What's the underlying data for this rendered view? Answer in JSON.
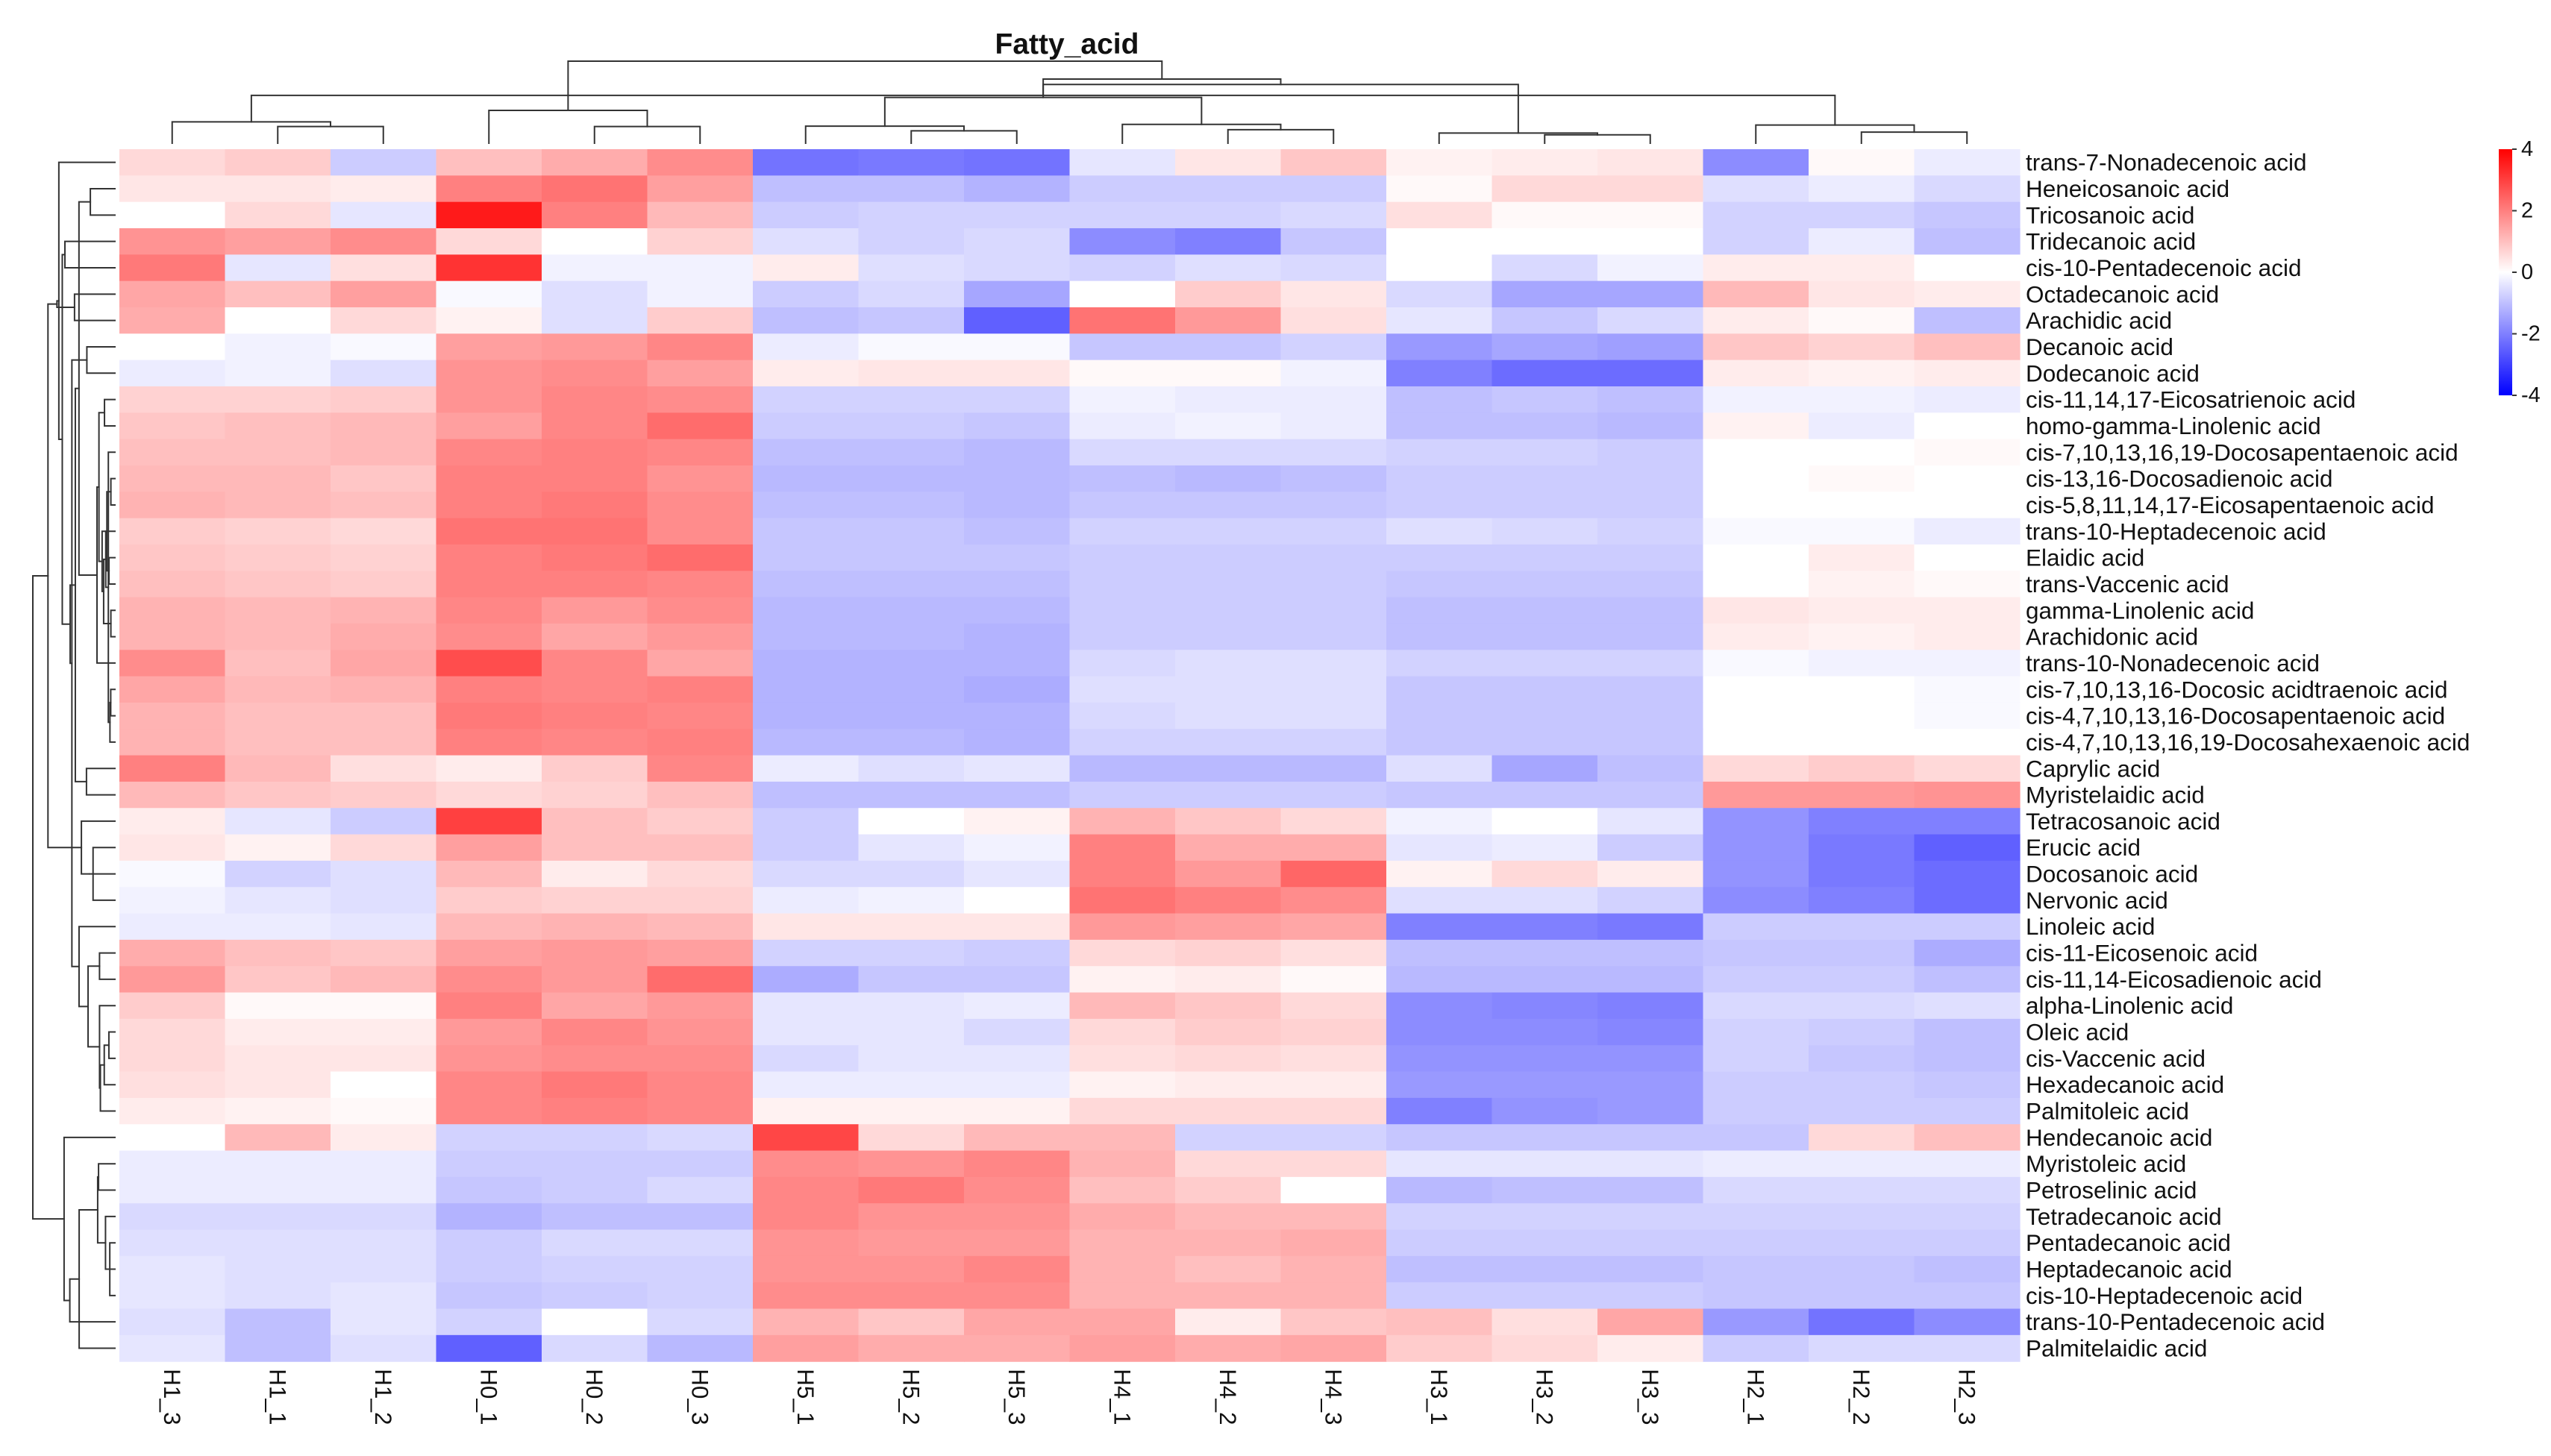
{
  "chart_data": {
    "type": "heatmap",
    "title": "Fatty_acid",
    "columns": [
      "H1_3",
      "H1_1",
      "H1_2",
      "H0_1",
      "H0_2",
      "H0_3",
      "H5_1",
      "H5_2",
      "H5_3",
      "H4_1",
      "H4_2",
      "H4_3",
      "H3_1",
      "H3_2",
      "H3_3",
      "H2_1",
      "H2_2",
      "H2_3"
    ],
    "rows": [
      "trans-7-Nonadecenoic acid",
      "Heneicosanoic acid",
      "Tricosanoic acid",
      "Tridecanoic acid",
      "cis-10-Pentadecenoic acid",
      "Octadecanoic acid",
      "Arachidic acid",
      "Decanoic acid",
      "Dodecanoic acid",
      "cis-11,14,17-Eicosatrienoic acid",
      "homo-gamma-Linolenic acid",
      "cis-7,10,13,16,19-Docosapentaenoic acid",
      "cis-13,16-Docosadienoic acid",
      "cis-5,8,11,14,17-Eicosapentaenoic acid",
      "trans-10-Heptadecenoic acid",
      "Elaidic acid",
      "trans-Vaccenic acid",
      "gamma-Linolenic acid",
      "Arachidonic acid",
      "trans-10-Nonadecenoic acid",
      "cis-7,10,13,16-Docosic acidtraenoic acid",
      "cis-4,7,10,13,16-Docosapentaenoic acid",
      "cis-4,7,10,13,16,19-Docosahexaenoic acid",
      "Caprylic acid",
      "Myristelaidic acid",
      "Tetracosanoic acid",
      "Erucic acid",
      "Docosanoic acid",
      "Nervonic acid",
      "Linoleic acid",
      "cis-11-Eicosenoic acid",
      "cis-11,14-Eicosadienoic acid",
      "alpha-Linolenic acid",
      "Oleic acid",
      "cis-Vaccenic acid",
      "Hexadecanoic acid",
      "Palmitoleic acid",
      "Hendecanoic acid",
      "Myristoleic acid",
      "Petroselinic acid",
      "Tetradecanoic acid",
      "Pentadecanoic acid",
      "Heptadecanoic acid",
      "cis-10-Heptadecenoic acid",
      "trans-10-Pentadecenoic acid",
      "Palmitelaidic acid"
    ],
    "values": [
      [
        0.6,
        0.8,
        -0.8,
        1.0,
        1.3,
        1.8,
        -2.2,
        -2.1,
        -2.2,
        -0.4,
        0.4,
        0.9,
        0.2,
        0.3,
        0.4,
        -1.8,
        0.1,
        -0.3
      ],
      [
        0.4,
        0.4,
        0.3,
        2.0,
        2.2,
        1.5,
        -1.0,
        -1.0,
        -1.2,
        -0.8,
        -0.8,
        -0.8,
        0.1,
        0.6,
        0.6,
        -0.5,
        -0.3,
        -0.6
      ],
      [
        0.0,
        0.6,
        -0.4,
        3.6,
        2.0,
        1.1,
        -0.8,
        -0.7,
        -0.7,
        -0.7,
        -0.7,
        -0.6,
        0.5,
        0.1,
        0.1,
        -0.7,
        -0.7,
        -0.9
      ],
      [
        1.7,
        1.5,
        1.8,
        0.6,
        0.0,
        0.7,
        -0.5,
        -0.7,
        -0.6,
        -1.8,
        -2.0,
        -0.9,
        0.0,
        0.0,
        0.0,
        -0.7,
        -0.3,
        -1.0
      ],
      [
        2.1,
        -0.4,
        0.5,
        3.2,
        -0.2,
        -0.2,
        0.3,
        -0.5,
        -0.6,
        -0.7,
        -0.5,
        -0.6,
        0.0,
        -0.6,
        -0.2,
        0.3,
        0.3,
        0.0
      ],
      [
        1.4,
        1.0,
        1.5,
        -0.1,
        -0.5,
        -0.2,
        -0.8,
        -0.6,
        -1.4,
        0.0,
        0.8,
        0.4,
        -0.6,
        -1.4,
        -1.4,
        1.1,
        0.4,
        0.3
      ],
      [
        1.3,
        0.0,
        0.6,
        0.2,
        -0.5,
        0.8,
        -1.0,
        -0.9,
        -2.5,
        2.2,
        1.6,
        0.5,
        -0.4,
        -0.9,
        -0.6,
        0.3,
        0.1,
        -1.0
      ],
      [
        0.0,
        -0.2,
        -0.1,
        1.5,
        1.6,
        1.9,
        -0.3,
        -0.1,
        -0.1,
        -0.9,
        -0.9,
        -0.7,
        -1.6,
        -1.4,
        -1.5,
        0.9,
        0.7,
        1.0
      ],
      [
        -0.3,
        -0.2,
        -0.5,
        1.7,
        1.8,
        1.5,
        0.3,
        0.4,
        0.4,
        0.1,
        0.1,
        -0.2,
        -2.0,
        -2.3,
        -2.3,
        0.3,
        0.2,
        0.3
      ],
      [
        0.7,
        0.7,
        0.8,
        1.7,
        1.9,
        1.8,
        -0.7,
        -0.7,
        -0.7,
        -0.2,
        -0.3,
        -0.3,
        -1.0,
        -0.9,
        -1.0,
        -0.2,
        -0.2,
        -0.3
      ],
      [
        0.9,
        1.0,
        1.1,
        1.5,
        1.9,
        2.3,
        -0.8,
        -0.8,
        -0.9,
        -0.3,
        -0.2,
        -0.3,
        -1.0,
        -1.0,
        -1.1,
        0.2,
        -0.3,
        0.0
      ],
      [
        1.0,
        1.0,
        1.1,
        1.9,
        2.0,
        1.9,
        -1.0,
        -1.0,
        -1.1,
        -0.6,
        -0.6,
        -0.6,
        -0.7,
        -0.7,
        -0.8,
        0.0,
        0.0,
        0.1
      ],
      [
        1.1,
        1.1,
        0.9,
        2.0,
        2.0,
        1.7,
        -1.1,
        -1.1,
        -1.1,
        -1.0,
        -1.1,
        -1.0,
        -0.8,
        -0.8,
        -0.8,
        0.0,
        0.1,
        0.0
      ],
      [
        1.2,
        1.1,
        1.0,
        2.0,
        2.1,
        1.8,
        -1.0,
        -1.0,
        -1.1,
        -0.9,
        -0.9,
        -0.9,
        -0.8,
        -0.8,
        -0.8,
        0.0,
        0.0,
        0.0
      ],
      [
        0.8,
        0.7,
        0.6,
        2.2,
        2.2,
        1.8,
        -0.9,
        -0.9,
        -1.0,
        -0.7,
        -0.7,
        -0.7,
        -0.5,
        -0.6,
        -0.7,
        -0.1,
        -0.1,
        -0.3
      ],
      [
        0.9,
        0.8,
        0.7,
        2.0,
        2.1,
        2.3,
        -0.9,
        -0.9,
        -0.9,
        -0.8,
        -0.8,
        -0.8,
        -0.8,
        -0.8,
        -0.8,
        0.0,
        0.3,
        0.0
      ],
      [
        1.0,
        0.9,
        0.8,
        2.0,
        2.0,
        1.9,
        -1.0,
        -1.0,
        -1.0,
        -0.8,
        -0.8,
        -0.8,
        -0.9,
        -0.9,
        -0.9,
        0.0,
        0.2,
        0.1
      ],
      [
        1.2,
        1.1,
        1.2,
        1.9,
        1.6,
        1.8,
        -1.1,
        -1.1,
        -1.1,
        -0.8,
        -0.8,
        -0.8,
        -1.0,
        -1.0,
        -1.0,
        0.4,
        0.3,
        0.3
      ],
      [
        1.2,
        1.1,
        1.3,
        1.8,
        1.4,
        1.6,
        -1.1,
        -1.1,
        -1.2,
        -0.8,
        -0.8,
        -0.8,
        -1.0,
        -1.0,
        -1.0,
        0.3,
        0.2,
        0.3
      ],
      [
        1.8,
        1.0,
        1.4,
        2.8,
        1.9,
        1.4,
        -1.2,
        -1.2,
        -1.2,
        -0.6,
        -0.5,
        -0.5,
        -0.7,
        -0.7,
        -0.7,
        -0.1,
        -0.2,
        -0.2
      ],
      [
        1.4,
        1.1,
        1.2,
        2.0,
        1.9,
        2.0,
        -1.2,
        -1.2,
        -1.3,
        -0.5,
        -0.5,
        -0.5,
        -0.9,
        -0.9,
        -0.9,
        0.0,
        0.0,
        -0.1
      ],
      [
        1.2,
        1.0,
        1.0,
        2.1,
        2.0,
        1.9,
        -1.2,
        -1.2,
        -1.2,
        -0.6,
        -0.5,
        -0.5,
        -0.9,
        -0.9,
        -0.9,
        0.0,
        0.0,
        -0.1
      ],
      [
        1.2,
        1.0,
        1.0,
        2.0,
        1.9,
        2.0,
        -1.1,
        -1.1,
        -1.2,
        -0.7,
        -0.7,
        -0.7,
        -0.9,
        -0.9,
        -0.9,
        0.0,
        0.0,
        0.0
      ],
      [
        2.0,
        1.1,
        0.5,
        0.3,
        0.8,
        1.9,
        -0.3,
        -0.5,
        -0.4,
        -1.1,
        -1.1,
        -1.1,
        -0.5,
        -1.4,
        -1.0,
        0.6,
        0.8,
        0.6
      ],
      [
        1.1,
        0.9,
        0.8,
        0.6,
        0.7,
        1.0,
        -1.0,
        -1.0,
        -1.0,
        -0.8,
        -0.8,
        -0.8,
        -0.9,
        -0.9,
        -0.9,
        1.6,
        1.6,
        1.7
      ],
      [
        0.3,
        -0.4,
        -0.8,
        3.0,
        1.0,
        0.8,
        -0.8,
        0.0,
        0.2,
        1.2,
        0.9,
        0.6,
        -0.2,
        0.0,
        -0.4,
        -1.7,
        -2.0,
        -2.0
      ],
      [
        0.4,
        0.2,
        0.6,
        1.5,
        1.0,
        1.0,
        -0.8,
        -0.4,
        -0.2,
        2.0,
        1.3,
        1.3,
        -0.4,
        -0.3,
        -0.8,
        -1.7,
        -2.1,
        -2.5
      ],
      [
        -0.1,
        -0.7,
        -0.5,
        1.1,
        0.3,
        0.6,
        -0.6,
        -0.6,
        -0.4,
        2.0,
        1.6,
        2.4,
        0.2,
        0.6,
        0.3,
        -1.7,
        -2.1,
        -2.3
      ],
      [
        -0.2,
        -0.4,
        -0.5,
        0.8,
        0.7,
        0.7,
        -0.3,
        -0.2,
        0.0,
        2.2,
        2.0,
        1.8,
        -0.5,
        -0.5,
        -0.7,
        -1.8,
        -2.0,
        -2.3
      ],
      [
        -0.3,
        -0.3,
        -0.4,
        1.1,
        1.2,
        1.1,
        0.4,
        0.4,
        0.4,
        1.6,
        1.5,
        1.4,
        -2.0,
        -2.0,
        -2.1,
        -0.8,
        -0.8,
        -0.8
      ],
      [
        1.3,
        1.0,
        0.9,
        1.5,
        1.6,
        1.5,
        -0.7,
        -0.7,
        -0.8,
        0.6,
        0.7,
        0.5,
        -1.0,
        -1.0,
        -1.0,
        -0.9,
        -0.9,
        -1.3
      ],
      [
        1.6,
        0.9,
        1.1,
        1.8,
        1.6,
        2.3,
        -1.3,
        -0.9,
        -0.9,
        0.2,
        0.3,
        0.1,
        -1.1,
        -1.1,
        -1.1,
        -0.8,
        -0.8,
        -1.0
      ],
      [
        0.8,
        0.1,
        0.1,
        2.0,
        1.4,
        1.6,
        -0.4,
        -0.4,
        -0.3,
        1.1,
        0.9,
        0.6,
        -1.8,
        -1.9,
        -2.0,
        -0.6,
        -0.6,
        -0.5
      ],
      [
        0.6,
        0.3,
        0.3,
        1.6,
        1.9,
        1.7,
        -0.4,
        -0.4,
        -0.6,
        0.6,
        0.8,
        0.7,
        -1.8,
        -1.8,
        -1.9,
        -0.7,
        -0.8,
        -1.0
      ],
      [
        0.6,
        0.4,
        0.4,
        1.7,
        1.8,
        1.8,
        -0.6,
        -0.4,
        -0.4,
        0.5,
        0.6,
        0.5,
        -1.7,
        -1.7,
        -1.7,
        -0.7,
        -0.9,
        -1.0
      ],
      [
        0.5,
        0.4,
        0.0,
        1.9,
        2.1,
        1.9,
        -0.3,
        -0.3,
        -0.3,
        0.2,
        0.3,
        0.3,
        -1.6,
        -1.6,
        -1.6,
        -0.8,
        -0.8,
        -0.9
      ],
      [
        0.3,
        0.2,
        0.1,
        1.9,
        2.0,
        1.9,
        0.2,
        0.2,
        0.2,
        0.6,
        0.6,
        0.6,
        -2.0,
        -1.7,
        -1.6,
        -0.8,
        -0.8,
        -0.8
      ],
      [
        0.0,
        1.1,
        0.3,
        -0.7,
        -0.7,
        -0.6,
        2.9,
        0.6,
        1.1,
        1.1,
        -0.7,
        -0.7,
        -0.9,
        -0.9,
        -0.9,
        -0.9,
        0.6,
        1.0
      ],
      [
        -0.3,
        -0.3,
        -0.3,
        -0.8,
        -0.8,
        -0.8,
        1.8,
        1.7,
        1.9,
        1.2,
        0.6,
        0.6,
        -0.4,
        -0.4,
        -0.4,
        -0.3,
        -0.3,
        -0.3
      ],
      [
        -0.3,
        -0.3,
        -0.3,
        -0.9,
        -0.8,
        -0.6,
        1.9,
        2.1,
        1.8,
        1.0,
        0.8,
        0.0,
        -1.1,
        -1.0,
        -1.0,
        -0.6,
        -0.6,
        -0.6
      ],
      [
        -0.6,
        -0.6,
        -0.6,
        -1.2,
        -1.0,
        -1.0,
        1.9,
        1.7,
        1.7,
        1.3,
        1.1,
        1.1,
        -0.7,
        -0.7,
        -0.7,
        -0.7,
        -0.7,
        -0.7
      ],
      [
        -0.5,
        -0.5,
        -0.5,
        -0.8,
        -0.6,
        -0.6,
        1.7,
        1.6,
        1.6,
        1.2,
        1.2,
        1.3,
        -0.8,
        -0.8,
        -0.8,
        -0.8,
        -0.8,
        -0.8
      ],
      [
        -0.4,
        -0.5,
        -0.5,
        -0.8,
        -0.7,
        -0.7,
        1.7,
        1.7,
        1.9,
        1.2,
        1.0,
        1.2,
        -1.0,
        -1.0,
        -1.0,
        -0.9,
        -0.9,
        -1.0
      ],
      [
        -0.4,
        -0.5,
        -0.4,
        -0.9,
        -0.8,
        -0.7,
        1.8,
        1.8,
        1.8,
        1.2,
        1.2,
        1.2,
        -0.8,
        -0.8,
        -0.8,
        -0.9,
        -0.9,
        -0.9
      ],
      [
        -0.5,
        -1.0,
        -0.4,
        -0.7,
        0.0,
        -0.6,
        1.2,
        0.9,
        1.4,
        1.4,
        0.3,
        0.9,
        1.0,
        0.5,
        1.4,
        -1.6,
        -2.2,
        -1.8
      ],
      [
        -0.4,
        -1.0,
        -0.5,
        -2.5,
        -0.6,
        -1.1,
        1.5,
        1.3,
        1.3,
        1.5,
        1.3,
        1.4,
        0.8,
        0.6,
        0.3,
        -0.8,
        -0.6,
        -0.6
      ]
    ],
    "color_scale": {
      "min": -4,
      "max": 4,
      "low_color": "#0000ff",
      "mid_color": "#ffffff",
      "high_color": "#ff0000"
    },
    "legend": {
      "ticks": [
        "4",
        "2",
        "0",
        "-2",
        "-4"
      ],
      "position": "top-right"
    },
    "clustering": {
      "rows": "hierarchical",
      "columns": "hierarchical"
    }
  }
}
